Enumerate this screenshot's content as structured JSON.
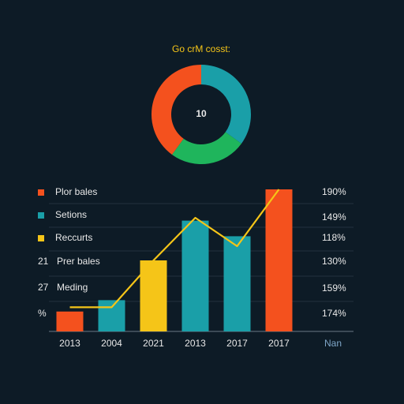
{
  "chart_data": [
    {
      "type": "pie",
      "title": "Go crM cosst:",
      "center_label": "10",
      "donut": true,
      "categories": [
        null,
        null,
        null
      ],
      "values": [
        35,
        25,
        40
      ],
      "colors": [
        "#1a9fa8",
        "#1fb55c",
        "#f4511e"
      ],
      "title_color": "#f5c518"
    },
    {
      "type": "bar",
      "categories": [
        "2013",
        "2004",
        "2021",
        "2013",
        "2017",
        "2017"
      ],
      "x_extra_label": "Nan",
      "series": [
        {
          "name": "Plor bales",
          "color": "#f4511e",
          "values": [
            14,
            null,
            null,
            null,
            null,
            100
          ]
        },
        {
          "name": "Setions",
          "color": "#1a9fa8",
          "values": [
            null,
            22,
            null,
            78,
            67,
            null
          ]
        },
        {
          "name": "Reccurts",
          "color": "#f5c518",
          "values": [
            null,
            null,
            50,
            null,
            null,
            null
          ]
        }
      ],
      "line": {
        "color": "#f5c518",
        "values": [
          17,
          17,
          50,
          80,
          60,
          100
        ]
      },
      "ylim": [
        0,
        100
      ],
      "notes": [
        {
          "key": "21",
          "text": "Prer bales"
        },
        {
          "key": "27",
          "text": "Meding"
        },
        {
          "key": "%",
          "text": null
        }
      ],
      "side_labels": [
        "190%",
        "149%",
        "118%",
        "130%",
        "159%",
        "174%"
      ]
    }
  ]
}
